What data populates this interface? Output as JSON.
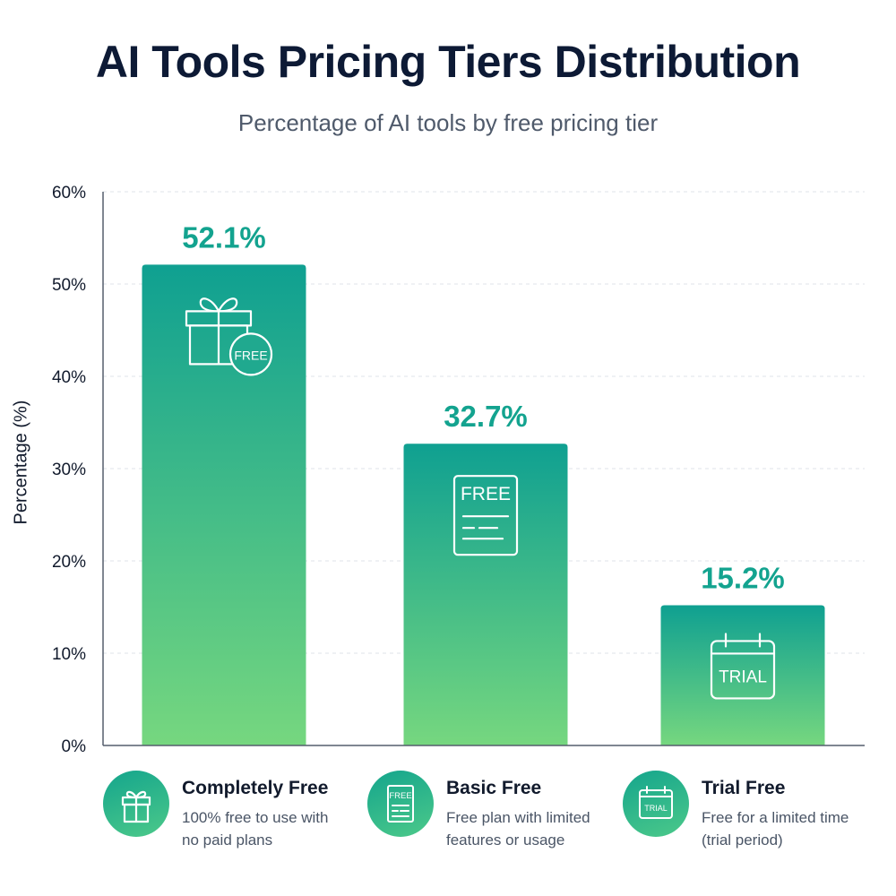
{
  "title": "AI Tools Pricing Tiers Distribution",
  "subtitle": "Percentage of AI tools by free pricing tier",
  "colors": {
    "bar_top": "#0fa091",
    "bar_bottom": "#76d77f",
    "value_label": "#13a38f",
    "grid": "#dfe3e8",
    "axis": "#555f6d"
  },
  "chart_data": {
    "type": "bar",
    "categories": [
      "Completely Free",
      "Basic Free",
      "Trial Free"
    ],
    "values": [
      52.1,
      32.7,
      15.2
    ],
    "value_labels": [
      "52.1%",
      "32.7%",
      "15.2%"
    ],
    "ylabel": "Percentage (%)",
    "xlabel": "",
    "ylim": [
      0,
      60
    ],
    "yticks": [
      0,
      10,
      20,
      30,
      40,
      50,
      60
    ],
    "ytick_labels": [
      "0%",
      "10%",
      "20%",
      "30%",
      "40%",
      "50%",
      "60%"
    ],
    "grid": true,
    "bar_icons": [
      "gift-free-icon",
      "free-document-icon",
      "trial-calendar-icon"
    ],
    "bar_icon_texts": [
      "FREE",
      "FREE",
      "TRIAL"
    ]
  },
  "legend": [
    {
      "title": "Completely Free",
      "line1": "100% free to use with",
      "line2": "no paid plans",
      "icon": "gift-icon"
    },
    {
      "title": "Basic Free",
      "line1": "Free plan with limited",
      "line2": "features or usage",
      "icon": "free-document-icon",
      "icon_text": "FREE"
    },
    {
      "title": "Trial Free",
      "line1": "Free for a limited time",
      "line2": "(trial period)",
      "icon": "trial-calendar-icon",
      "icon_text": "TRIAL"
    }
  ]
}
